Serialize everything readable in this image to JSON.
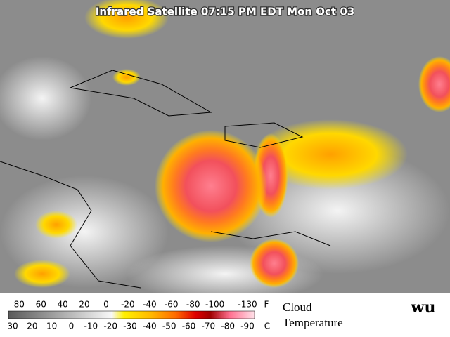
{
  "map": {
    "title": "Infrared Satellite 07:15 PM EDT Mon Oct 03",
    "legend": {
      "f_labels": [
        80,
        60,
        40,
        20,
        0,
        -20,
        -40,
        -60,
        -80,
        -100,
        -130
      ],
      "f_unit": "F",
      "c_labels": [
        30,
        20,
        10,
        0,
        -10,
        -20,
        -30,
        -40,
        -50,
        -60,
        -70,
        -80,
        -90
      ],
      "c_unit": "C",
      "caption_1": "Cloud",
      "caption_2": "Temperature"
    },
    "logo": "wu"
  }
}
